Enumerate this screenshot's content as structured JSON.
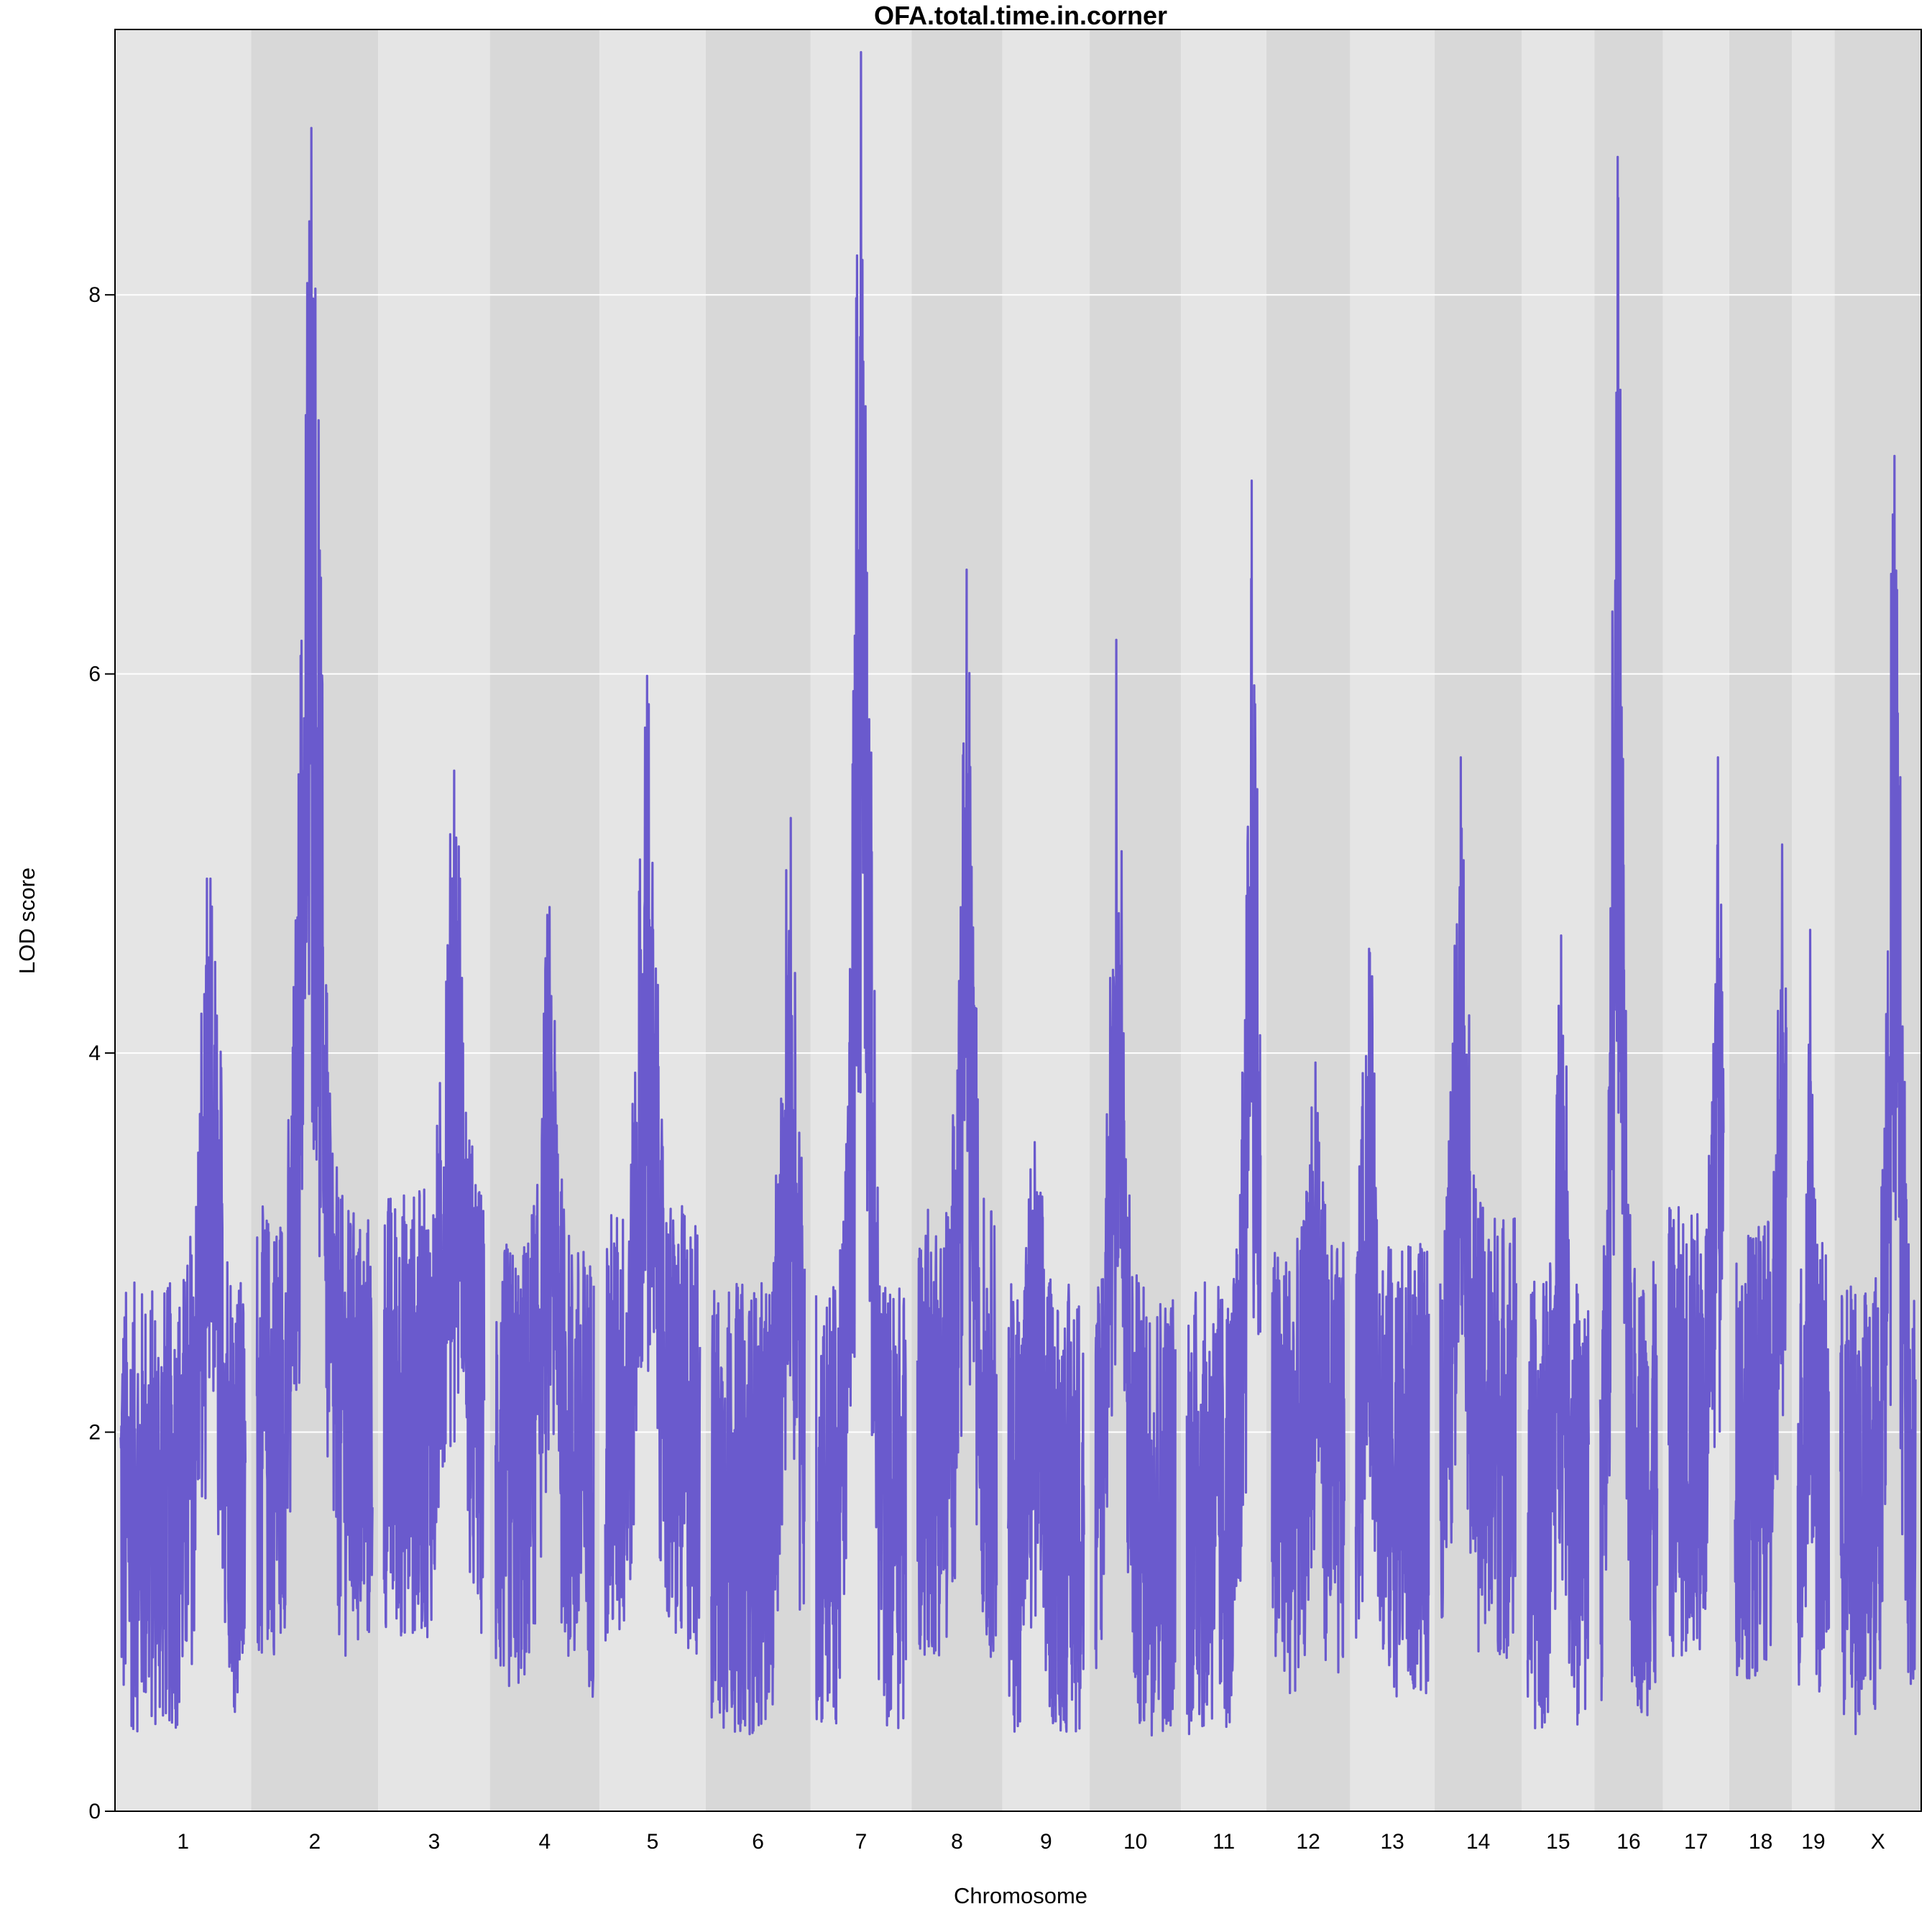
{
  "chart_data": {
    "type": "line",
    "title": "OFA.total.time.in.corner",
    "xlabel": "Chromosome",
    "ylabel": "LOD score",
    "ylim": [
      0,
      9.4
    ],
    "yticks": [
      0,
      2,
      4,
      6,
      8
    ],
    "grid": true,
    "line_color": "#6a5acd",
    "band_colors": [
      "#e5e5e5",
      "#d8d8d8"
    ],
    "chromosomes": [
      {
        "name": "1",
        "length": 195,
        "peak_pos": 0.72,
        "peak": 4.92,
        "baseline": 1.6
      },
      {
        "name": "2",
        "length": 182,
        "peak_pos": 0.47,
        "peak": 8.88,
        "baseline": 2.0
      },
      {
        "name": "3",
        "length": 160,
        "peak_pos": 0.7,
        "peak": 5.49,
        "baseline": 2.1
      },
      {
        "name": "4",
        "length": 157,
        "peak_pos": 0.55,
        "peak": 4.77,
        "baseline": 1.8
      },
      {
        "name": "5",
        "length": 152,
        "peak_pos": 0.44,
        "peak": 5.99,
        "baseline": 2.0
      },
      {
        "name": "6",
        "length": 150,
        "peak_pos": 0.85,
        "peak": 5.24,
        "baseline": 1.6
      },
      {
        "name": "7",
        "length": 145,
        "peak_pos": 0.5,
        "peak": 9.28,
        "baseline": 1.6
      },
      {
        "name": "8",
        "length": 130,
        "peak_pos": 0.62,
        "peak": 6.55,
        "baseline": 2.0
      },
      {
        "name": "9",
        "length": 125,
        "peak_pos": 0.35,
        "peak": 3.53,
        "baseline": 1.6
      },
      {
        "name": "10",
        "length": 131,
        "peak_pos": 0.26,
        "peak": 6.18,
        "baseline": 1.6
      },
      {
        "name": "11",
        "length": 122,
        "peak_pos": 0.88,
        "peak": 7.02,
        "baseline": 1.6
      },
      {
        "name": "12",
        "length": 120,
        "peak_pos": 0.6,
        "peak": 3.95,
        "baseline": 1.8
      },
      {
        "name": "13",
        "length": 121,
        "peak_pos": 0.18,
        "peak": 4.55,
        "baseline": 1.8
      },
      {
        "name": "14",
        "length": 125,
        "peak_pos": 0.27,
        "peak": 5.56,
        "baseline": 2.0
      },
      {
        "name": "15",
        "length": 104,
        "peak_pos": 0.55,
        "peak": 4.62,
        "baseline": 1.6
      },
      {
        "name": "16",
        "length": 98,
        "peak_pos": 0.3,
        "peak": 8.93,
        "baseline": 1.7
      },
      {
        "name": "17",
        "length": 95,
        "peak_pos": 0.9,
        "peak": 5.56,
        "baseline": 2.0
      },
      {
        "name": "18",
        "length": 90,
        "peak_pos": 0.92,
        "peak": 5.1,
        "baseline": 1.9
      },
      {
        "name": "19",
        "length": 61,
        "peak_pos": 0.4,
        "peak": 4.65,
        "baseline": 1.8
      },
      {
        "name": "X",
        "length": 124,
        "peak_pos": 0.72,
        "peak": 7.15,
        "baseline": 1.6
      }
    ]
  }
}
